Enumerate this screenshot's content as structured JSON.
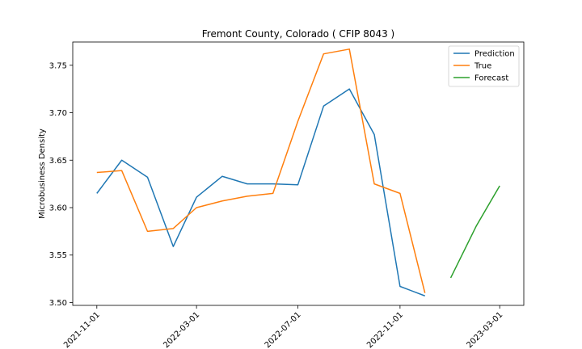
{
  "chart_data": {
    "type": "line",
    "title": "Fremont County, Colorado ( CFIP 8043 )",
    "xlabel": "",
    "ylabel": "Microbusiness Density",
    "ylim": [
      3.497,
      3.7745
    ],
    "xlim": [
      "2021-10-03",
      "2023-03-30"
    ],
    "x_ticks": [
      "2021-11-01",
      "2022-03-01",
      "2022-07-01",
      "2022-11-01",
      "2023-03-01"
    ],
    "y_ticks": [
      "3.50",
      "3.55",
      "3.60",
      "3.65",
      "3.70",
      "3.75"
    ],
    "legend_position": "top-right",
    "grid": false,
    "series": [
      {
        "name": "Prediction",
        "color": "#1f77b4",
        "x": [
          "2021-11-01",
          "2021-12-01",
          "2022-01-01",
          "2022-02-01",
          "2022-03-01",
          "2022-04-01",
          "2022-05-01",
          "2022-06-01",
          "2022-07-01",
          "2022-08-01",
          "2022-09-01",
          "2022-10-01",
          "2022-11-01",
          "2022-12-01"
        ],
        "values": [
          3.615,
          3.65,
          3.632,
          3.559,
          3.611,
          3.633,
          3.625,
          3.625,
          3.624,
          3.707,
          3.725,
          3.677,
          3.517,
          3.507
        ]
      },
      {
        "name": "True",
        "color": "#ff7f0e",
        "x": [
          "2021-11-01",
          "2021-12-01",
          "2022-01-01",
          "2022-02-01",
          "2022-03-01",
          "2022-04-01",
          "2022-05-01",
          "2022-06-01",
          "2022-07-01",
          "2022-08-01",
          "2022-09-01",
          "2022-10-01",
          "2022-11-01",
          "2022-12-01"
        ],
        "values": [
          3.637,
          3.639,
          3.575,
          3.578,
          3.6,
          3.607,
          3.612,
          3.615,
          3.691,
          3.762,
          3.767,
          3.625,
          3.615,
          3.51
        ]
      },
      {
        "name": "Forecast",
        "color": "#2ca02c",
        "x": [
          "2023-01-01",
          "2023-02-01",
          "2023-03-01"
        ],
        "values": [
          3.526,
          3.581,
          3.623
        ]
      }
    ]
  }
}
